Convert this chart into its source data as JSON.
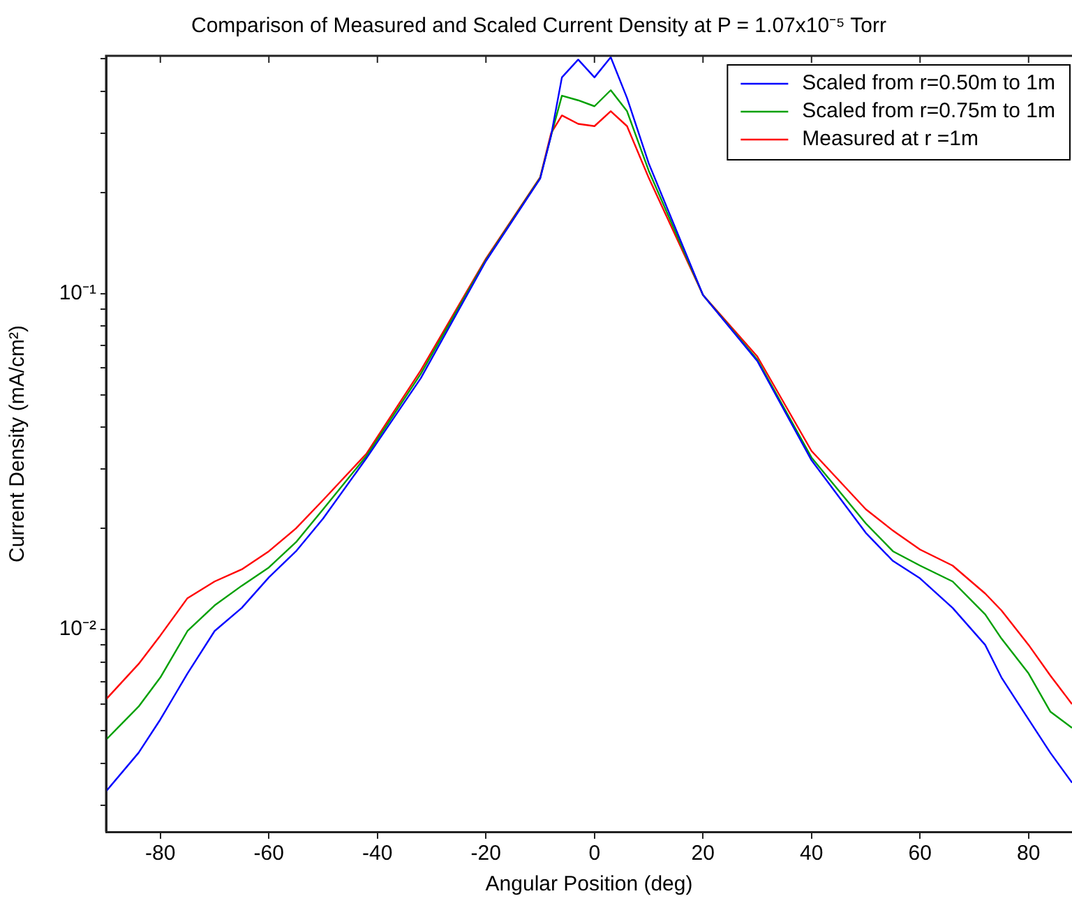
{
  "chart_data": {
    "type": "line",
    "title": "Comparison of Measured and Scaled Current Density at P = 1.07x10⁻⁵ Torr",
    "xlabel": "Angular Position (deg)",
    "ylabel": "Current Density (mA/cm²)",
    "x": [
      -90,
      -84,
      -80,
      -75,
      -70,
      -65,
      -60,
      -55,
      -50,
      -42,
      -32,
      -20,
      -10,
      -8,
      -6,
      -3,
      0,
      3,
      6,
      10,
      20,
      30,
      40,
      50,
      55,
      60,
      66,
      72,
      75,
      80,
      84,
      88
    ],
    "series": [
      {
        "name": "Scaled from r=0.50m to 1m",
        "color": "#0000ff",
        "values": [
          0.0033,
          0.0043,
          0.0054,
          0.0074,
          0.0099,
          0.0116,
          0.0143,
          0.0171,
          0.0214,
          0.0324,
          0.056,
          0.125,
          0.22,
          0.295,
          0.44,
          0.497,
          0.44,
          0.505,
          0.382,
          0.244,
          0.099,
          0.063,
          0.0319,
          0.0194,
          0.016,
          0.0142,
          0.0116,
          0.009,
          0.0072,
          0.0054,
          0.0043,
          0.0035
        ]
      },
      {
        "name": "Scaled from r=0.75m to 1m",
        "color": "#00a000",
        "values": [
          0.0047,
          0.0059,
          0.0072,
          0.0099,
          0.0118,
          0.0135,
          0.0153,
          0.0182,
          0.0228,
          0.0329,
          0.0577,
          0.126,
          0.221,
          0.295,
          0.388,
          0.376,
          0.361,
          0.403,
          0.349,
          0.232,
          0.099,
          0.0636,
          0.0325,
          0.0207,
          0.0171,
          0.0155,
          0.0139,
          0.0111,
          0.0094,
          0.0074,
          0.0057,
          0.0051
        ]
      },
      {
        "name": "Measured at r =1m",
        "color": "#ff0000",
        "values": [
          0.0062,
          0.0079,
          0.0096,
          0.0124,
          0.0139,
          0.0151,
          0.0171,
          0.02,
          0.0243,
          0.0334,
          0.0591,
          0.127,
          0.222,
          0.3,
          0.339,
          0.32,
          0.315,
          0.349,
          0.315,
          0.221,
          0.099,
          0.065,
          0.034,
          0.0228,
          0.0197,
          0.0173,
          0.0155,
          0.0128,
          0.0114,
          0.009,
          0.0073,
          0.006
        ]
      }
    ],
    "log": "y",
    "xlim": [
      -90,
      88
    ],
    "ylim": [
      0.0025,
      0.51
    ],
    "xticks": [
      -80,
      -60,
      -40,
      -20,
      0,
      20,
      40,
      60,
      80
    ],
    "yticks": [
      {
        "value": 0.003,
        "label": null
      },
      {
        "value": 0.004,
        "label": null
      },
      {
        "value": 0.005,
        "label": null
      },
      {
        "value": 0.006,
        "label": null
      },
      {
        "value": 0.007,
        "label": null
      },
      {
        "value": 0.008,
        "label": null
      },
      {
        "value": 0.009,
        "label": null
      },
      {
        "value": 0.01,
        "label": "10⁻²"
      },
      {
        "value": 0.02,
        "label": null
      },
      {
        "value": 0.03,
        "label": null
      },
      {
        "value": 0.04,
        "label": null
      },
      {
        "value": 0.05,
        "label": null
      },
      {
        "value": 0.06,
        "label": null
      },
      {
        "value": 0.07,
        "label": null
      },
      {
        "value": 0.08,
        "label": null
      },
      {
        "value": 0.09,
        "label": null
      },
      {
        "value": 0.1,
        "label": "10⁻¹"
      },
      {
        "value": 0.2,
        "label": null
      },
      {
        "value": 0.3,
        "label": null
      },
      {
        "value": 0.4,
        "label": null
      },
      {
        "value": 0.5,
        "label": null
      }
    ],
    "grid": false,
    "legend": "top right",
    "marker": "none",
    "line_style": "solid"
  }
}
